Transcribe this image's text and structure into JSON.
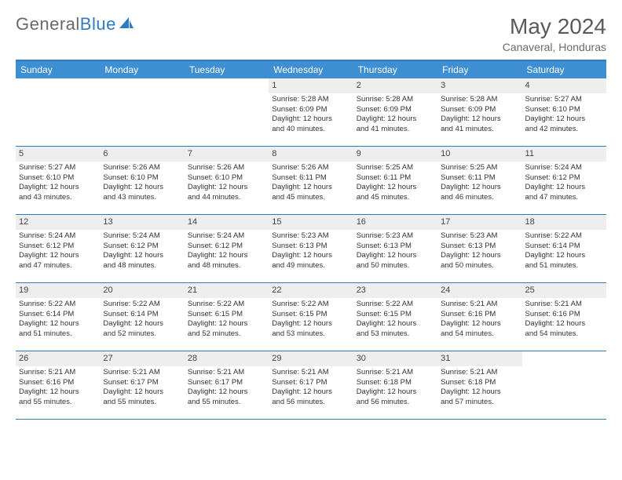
{
  "logo": {
    "text1": "General",
    "text2": "Blue"
  },
  "title": "May 2024",
  "location": "Canaveral, Honduras",
  "colors": {
    "header_bg": "#3d8fd1",
    "border": "#2f7bc2",
    "daynum_bg": "#eeeeee",
    "text": "#333333"
  },
  "weekdays": [
    "Sunday",
    "Monday",
    "Tuesday",
    "Wednesday",
    "Thursday",
    "Friday",
    "Saturday"
  ],
  "weeks": [
    [
      {
        "n": "",
        "l": []
      },
      {
        "n": "",
        "l": []
      },
      {
        "n": "",
        "l": []
      },
      {
        "n": "1",
        "l": [
          "Sunrise: 5:28 AM",
          "Sunset: 6:09 PM",
          "Daylight: 12 hours",
          "and 40 minutes."
        ]
      },
      {
        "n": "2",
        "l": [
          "Sunrise: 5:28 AM",
          "Sunset: 6:09 PM",
          "Daylight: 12 hours",
          "and 41 minutes."
        ]
      },
      {
        "n": "3",
        "l": [
          "Sunrise: 5:28 AM",
          "Sunset: 6:09 PM",
          "Daylight: 12 hours",
          "and 41 minutes."
        ]
      },
      {
        "n": "4",
        "l": [
          "Sunrise: 5:27 AM",
          "Sunset: 6:10 PM",
          "Daylight: 12 hours",
          "and 42 minutes."
        ]
      }
    ],
    [
      {
        "n": "5",
        "l": [
          "Sunrise: 5:27 AM",
          "Sunset: 6:10 PM",
          "Daylight: 12 hours",
          "and 43 minutes."
        ]
      },
      {
        "n": "6",
        "l": [
          "Sunrise: 5:26 AM",
          "Sunset: 6:10 PM",
          "Daylight: 12 hours",
          "and 43 minutes."
        ]
      },
      {
        "n": "7",
        "l": [
          "Sunrise: 5:26 AM",
          "Sunset: 6:10 PM",
          "Daylight: 12 hours",
          "and 44 minutes."
        ]
      },
      {
        "n": "8",
        "l": [
          "Sunrise: 5:26 AM",
          "Sunset: 6:11 PM",
          "Daylight: 12 hours",
          "and 45 minutes."
        ]
      },
      {
        "n": "9",
        "l": [
          "Sunrise: 5:25 AM",
          "Sunset: 6:11 PM",
          "Daylight: 12 hours",
          "and 45 minutes."
        ]
      },
      {
        "n": "10",
        "l": [
          "Sunrise: 5:25 AM",
          "Sunset: 6:11 PM",
          "Daylight: 12 hours",
          "and 46 minutes."
        ]
      },
      {
        "n": "11",
        "l": [
          "Sunrise: 5:24 AM",
          "Sunset: 6:12 PM",
          "Daylight: 12 hours",
          "and 47 minutes."
        ]
      }
    ],
    [
      {
        "n": "12",
        "l": [
          "Sunrise: 5:24 AM",
          "Sunset: 6:12 PM",
          "Daylight: 12 hours",
          "and 47 minutes."
        ]
      },
      {
        "n": "13",
        "l": [
          "Sunrise: 5:24 AM",
          "Sunset: 6:12 PM",
          "Daylight: 12 hours",
          "and 48 minutes."
        ]
      },
      {
        "n": "14",
        "l": [
          "Sunrise: 5:24 AM",
          "Sunset: 6:12 PM",
          "Daylight: 12 hours",
          "and 48 minutes."
        ]
      },
      {
        "n": "15",
        "l": [
          "Sunrise: 5:23 AM",
          "Sunset: 6:13 PM",
          "Daylight: 12 hours",
          "and 49 minutes."
        ]
      },
      {
        "n": "16",
        "l": [
          "Sunrise: 5:23 AM",
          "Sunset: 6:13 PM",
          "Daylight: 12 hours",
          "and 50 minutes."
        ]
      },
      {
        "n": "17",
        "l": [
          "Sunrise: 5:23 AM",
          "Sunset: 6:13 PM",
          "Daylight: 12 hours",
          "and 50 minutes."
        ]
      },
      {
        "n": "18",
        "l": [
          "Sunrise: 5:22 AM",
          "Sunset: 6:14 PM",
          "Daylight: 12 hours",
          "and 51 minutes."
        ]
      }
    ],
    [
      {
        "n": "19",
        "l": [
          "Sunrise: 5:22 AM",
          "Sunset: 6:14 PM",
          "Daylight: 12 hours",
          "and 51 minutes."
        ]
      },
      {
        "n": "20",
        "l": [
          "Sunrise: 5:22 AM",
          "Sunset: 6:14 PM",
          "Daylight: 12 hours",
          "and 52 minutes."
        ]
      },
      {
        "n": "21",
        "l": [
          "Sunrise: 5:22 AM",
          "Sunset: 6:15 PM",
          "Daylight: 12 hours",
          "and 52 minutes."
        ]
      },
      {
        "n": "22",
        "l": [
          "Sunrise: 5:22 AM",
          "Sunset: 6:15 PM",
          "Daylight: 12 hours",
          "and 53 minutes."
        ]
      },
      {
        "n": "23",
        "l": [
          "Sunrise: 5:22 AM",
          "Sunset: 6:15 PM",
          "Daylight: 12 hours",
          "and 53 minutes."
        ]
      },
      {
        "n": "24",
        "l": [
          "Sunrise: 5:21 AM",
          "Sunset: 6:16 PM",
          "Daylight: 12 hours",
          "and 54 minutes."
        ]
      },
      {
        "n": "25",
        "l": [
          "Sunrise: 5:21 AM",
          "Sunset: 6:16 PM",
          "Daylight: 12 hours",
          "and 54 minutes."
        ]
      }
    ],
    [
      {
        "n": "26",
        "l": [
          "Sunrise: 5:21 AM",
          "Sunset: 6:16 PM",
          "Daylight: 12 hours",
          "and 55 minutes."
        ]
      },
      {
        "n": "27",
        "l": [
          "Sunrise: 5:21 AM",
          "Sunset: 6:17 PM",
          "Daylight: 12 hours",
          "and 55 minutes."
        ]
      },
      {
        "n": "28",
        "l": [
          "Sunrise: 5:21 AM",
          "Sunset: 6:17 PM",
          "Daylight: 12 hours",
          "and 55 minutes."
        ]
      },
      {
        "n": "29",
        "l": [
          "Sunrise: 5:21 AM",
          "Sunset: 6:17 PM",
          "Daylight: 12 hours",
          "and 56 minutes."
        ]
      },
      {
        "n": "30",
        "l": [
          "Sunrise: 5:21 AM",
          "Sunset: 6:18 PM",
          "Daylight: 12 hours",
          "and 56 minutes."
        ]
      },
      {
        "n": "31",
        "l": [
          "Sunrise: 5:21 AM",
          "Sunset: 6:18 PM",
          "Daylight: 12 hours",
          "and 57 minutes."
        ]
      },
      {
        "n": "",
        "l": []
      }
    ]
  ]
}
